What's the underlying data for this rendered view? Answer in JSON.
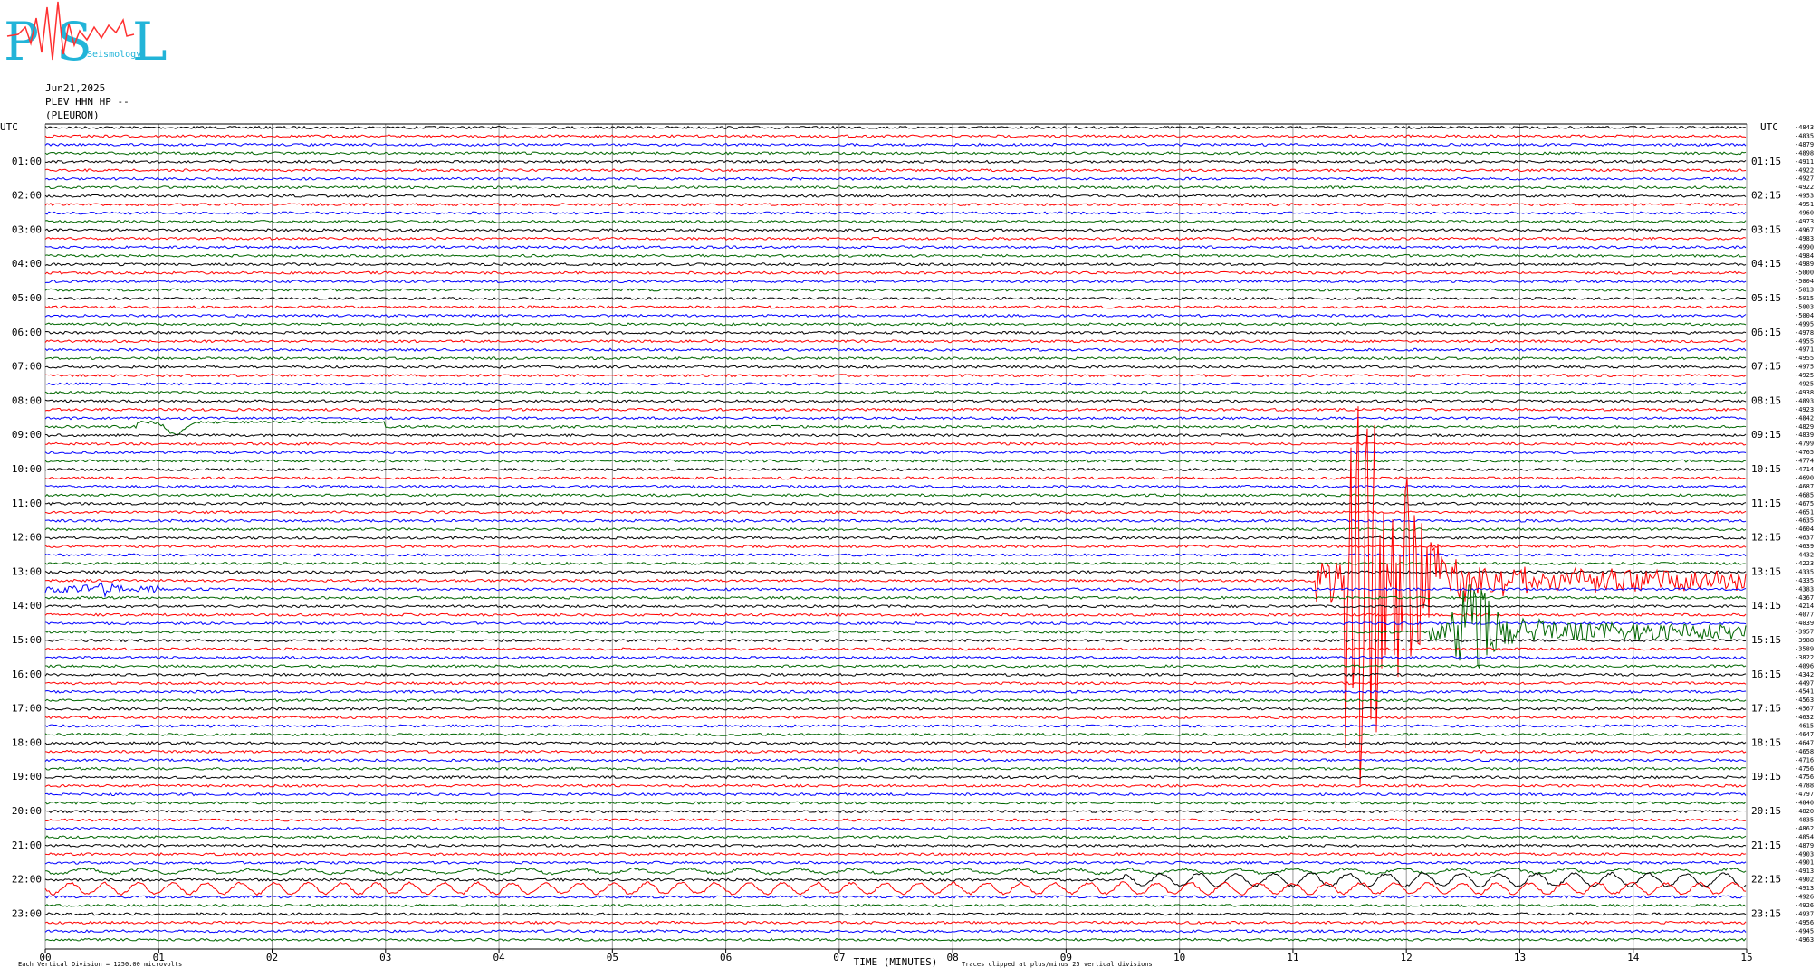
{
  "logo": {
    "letters": [
      "P",
      "S",
      "L"
    ],
    "text": "Seismology"
  },
  "header": {
    "date": "Jun21,2025",
    "station": "PLEV HHN HP --",
    "site": "(PLEURON)"
  },
  "left_axis": {
    "title": "UTC",
    "labels": [
      "01:00",
      "02:00",
      "03:00",
      "04:00",
      "05:00",
      "06:00",
      "07:00",
      "08:00",
      "09:00",
      "10:00",
      "11:00",
      "12:00",
      "13:00",
      "14:00",
      "15:00",
      "16:00",
      "17:00",
      "18:00",
      "19:00",
      "20:00",
      "21:00",
      "22:00",
      "23:00"
    ]
  },
  "right_axis": {
    "title": "UTC",
    "labels": [
      "01:15",
      "02:15",
      "03:15",
      "04:15",
      "05:15",
      "06:15",
      "07:15",
      "08:15",
      "09:15",
      "10:15",
      "11:15",
      "12:15",
      "13:15",
      "14:15",
      "15:15",
      "16:15",
      "17:15",
      "18:15",
      "19:15",
      "20:15",
      "21:15",
      "22:15",
      "23:15"
    ],
    "offsets": [
      -4843,
      -4835,
      -4879,
      -4898,
      -4911,
      -4922,
      -4927,
      -4922,
      -4953,
      -4951,
      -4960,
      -4973,
      -4967,
      -4983,
      -4990,
      -4984,
      -4989,
      -5000,
      -5004,
      -5013,
      -5015,
      -5003,
      -5004,
      -4995,
      -4978,
      -4955,
      -4971,
      -4955,
      -4975,
      -4925,
      -4925,
      -4938,
      -4893,
      -4923,
      -4842,
      -4829,
      -4839,
      -4799,
      -4765,
      -4774,
      -4714,
      -4690,
      -4687,
      -4685,
      -4675,
      -4651,
      -4635,
      -4604,
      -4637,
      -4639,
      -4432,
      -4223,
      -4335,
      -4335,
      -4383,
      -4367,
      -4214,
      -4077,
      -4039,
      -3957,
      -3988,
      -3589,
      -3822,
      -4096,
      -4342,
      -4497,
      -4541,
      -4563,
      -4567,
      -4632,
      -4615,
      -4647,
      -4647,
      -4658,
      -4716,
      -4756,
      -4756,
      -4788,
      -4797,
      -4840,
      -4820,
      -4835,
      -4862,
      -4854,
      -4879,
      -4903,
      -4901,
      -4913,
      -4902,
      -4913,
      -4926,
      -4926,
      -4937,
      -4956,
      -4945,
      -4963
    ]
  },
  "x_axis": {
    "ticks": [
      "00",
      "01",
      "02",
      "03",
      "04",
      "05",
      "06",
      "07",
      "08",
      "09",
      "10",
      "11",
      "12",
      "13",
      "14",
      "15"
    ],
    "title": "TIME (MINUTES)"
  },
  "footer": {
    "scale_note": "Each Vertical Division = 1250.00 microvolts",
    "clip_note": "Traces clipped at plus/minus 25 vertical divisions"
  },
  "trace_colors": [
    "#000000",
    "#ff0000",
    "#0000ff",
    "#006600"
  ]
}
